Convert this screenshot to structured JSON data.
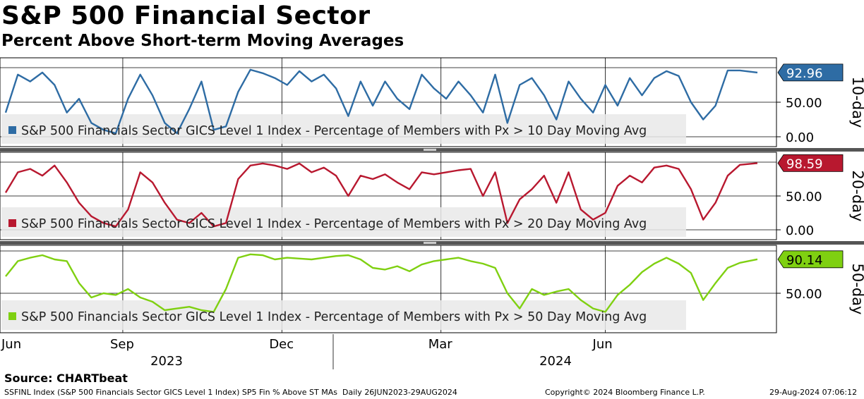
{
  "title": "S&P 500 Financial Sector",
  "subtitle": "Percent Above Short-term Moving Averages",
  "source": "Source: CHARTbeat",
  "footer": {
    "left": "SSFINL Index (S&P 500 Financials Sector GICS Level 1 Index) SP5 Fin % Above ST MAs  Daily 26JUN2023-29AUG2024",
    "middle": "Copyright© 2024 Bloomberg Finance L.P.",
    "right": "29-Aug-2024 07:06:12"
  },
  "x_axis": {
    "month_labels": [
      "Jun",
      "Sep",
      "Dec",
      "Mar",
      "Jun"
    ],
    "year_labels": [
      "2023",
      "2024"
    ]
  },
  "chart_data": [
    {
      "type": "line",
      "panel_label": "10-day",
      "legend": "S&P 500 Financials Sector GICS Level 1 Index - Percentage of Members with Px > 10 Day Moving Avg",
      "color": "#2e6ca4",
      "last_value_label": "92.96",
      "ylim": [
        -5,
        105
      ],
      "yticks": [
        "50.00",
        "0.00"
      ],
      "x": [
        "2023-06-26",
        "2023-07-03",
        "2023-07-10",
        "2023-07-17",
        "2023-07-24",
        "2023-07-31",
        "2023-08-07",
        "2023-08-14",
        "2023-08-21",
        "2023-08-28",
        "2023-09-04",
        "2023-09-11",
        "2023-09-18",
        "2023-09-25",
        "2023-10-02",
        "2023-10-09",
        "2023-10-16",
        "2023-10-23",
        "2023-10-30",
        "2023-11-06",
        "2023-11-13",
        "2023-11-20",
        "2023-11-27",
        "2023-12-04",
        "2023-12-11",
        "2023-12-18",
        "2023-12-25",
        "2024-01-01",
        "2024-01-08",
        "2024-01-15",
        "2024-01-22",
        "2024-01-29",
        "2024-02-05",
        "2024-02-12",
        "2024-02-19",
        "2024-02-26",
        "2024-03-04",
        "2024-03-11",
        "2024-03-18",
        "2024-03-25",
        "2024-04-01",
        "2024-04-08",
        "2024-04-15",
        "2024-04-22",
        "2024-04-29",
        "2024-05-06",
        "2024-05-13",
        "2024-05-20",
        "2024-05-27",
        "2024-06-03",
        "2024-06-10",
        "2024-06-17",
        "2024-06-24",
        "2024-07-01",
        "2024-07-08",
        "2024-07-15",
        "2024-07-22",
        "2024-07-29",
        "2024-08-05",
        "2024-08-12",
        "2024-08-19",
        "2024-08-29"
      ],
      "values": [
        35,
        90,
        80,
        93,
        75,
        35,
        55,
        20,
        10,
        5,
        55,
        90,
        60,
        20,
        5,
        40,
        80,
        10,
        15,
        65,
        97,
        92,
        85,
        75,
        95,
        80,
        90,
        70,
        30,
        80,
        45,
        80,
        55,
        40,
        90,
        70,
        55,
        80,
        60,
        35,
        90,
        20,
        75,
        85,
        60,
        25,
        80,
        55,
        35,
        75,
        45,
        85,
        60,
        85,
        95,
        88,
        50,
        25,
        45,
        96,
        96,
        92.96
      ]
    },
    {
      "type": "line",
      "panel_label": "20-day",
      "legend": "S&P 500 Financials Sector GICS Level 1 Index - Percentage of Members with Px > 20 Day Moving Avg",
      "color": "#b8182f",
      "last_value_label": "98.59",
      "ylim": [
        -5,
        105
      ],
      "yticks": [
        "50.00",
        "0.00"
      ],
      "x": [
        "2023-06-26",
        "2023-07-03",
        "2023-07-10",
        "2023-07-17",
        "2023-07-24",
        "2023-07-31",
        "2023-08-07",
        "2023-08-14",
        "2023-08-21",
        "2023-08-28",
        "2023-09-04",
        "2023-09-11",
        "2023-09-18",
        "2023-09-25",
        "2023-10-02",
        "2023-10-09",
        "2023-10-16",
        "2023-10-23",
        "2023-10-30",
        "2023-11-06",
        "2023-11-13",
        "2023-11-20",
        "2023-11-27",
        "2023-12-04",
        "2023-12-11",
        "2023-12-18",
        "2023-12-25",
        "2024-01-01",
        "2024-01-08",
        "2024-01-15",
        "2024-01-22",
        "2024-01-29",
        "2024-02-05",
        "2024-02-12",
        "2024-02-19",
        "2024-02-26",
        "2024-03-04",
        "2024-03-11",
        "2024-03-18",
        "2024-03-25",
        "2024-04-01",
        "2024-04-08",
        "2024-04-15",
        "2024-04-22",
        "2024-04-29",
        "2024-05-06",
        "2024-05-13",
        "2024-05-20",
        "2024-05-27",
        "2024-06-03",
        "2024-06-10",
        "2024-06-17",
        "2024-06-24",
        "2024-07-01",
        "2024-07-08",
        "2024-07-15",
        "2024-07-22",
        "2024-07-29",
        "2024-08-05",
        "2024-08-12",
        "2024-08-19",
        "2024-08-29"
      ],
      "values": [
        55,
        85,
        90,
        80,
        95,
        70,
        40,
        20,
        10,
        5,
        30,
        85,
        70,
        40,
        15,
        10,
        25,
        5,
        10,
        75,
        95,
        98,
        95,
        90,
        98,
        85,
        92,
        80,
        50,
        80,
        75,
        82,
        70,
        60,
        85,
        82,
        85,
        88,
        90,
        50,
        85,
        10,
        45,
        60,
        80,
        40,
        85,
        30,
        15,
        25,
        65,
        80,
        70,
        92,
        95,
        90,
        60,
        15,
        40,
        80,
        96,
        98.59
      ]
    },
    {
      "type": "line",
      "panel_label": "50-day",
      "legend": "S&P 500 Financials Sector GICS Level 1 Index - Percentage of Members with Px > 50 Day Moving Avg",
      "color": "#7fd011",
      "last_value_label": "90.14",
      "ylim": [
        20,
        102
      ],
      "yticks": [
        "50.00"
      ],
      "x": [
        "2023-06-26",
        "2023-07-03",
        "2023-07-10",
        "2023-07-17",
        "2023-07-24",
        "2023-07-31",
        "2023-08-07",
        "2023-08-14",
        "2023-08-21",
        "2023-08-28",
        "2023-09-04",
        "2023-09-11",
        "2023-09-18",
        "2023-09-25",
        "2023-10-02",
        "2023-10-09",
        "2023-10-16",
        "2023-10-23",
        "2023-10-30",
        "2023-11-06",
        "2023-11-13",
        "2023-11-20",
        "2023-11-27",
        "2023-12-04",
        "2023-12-11",
        "2023-12-18",
        "2023-12-25",
        "2024-01-01",
        "2024-01-08",
        "2024-01-15",
        "2024-01-22",
        "2024-01-29",
        "2024-02-05",
        "2024-02-12",
        "2024-02-19",
        "2024-02-26",
        "2024-03-04",
        "2024-03-11",
        "2024-03-18",
        "2024-03-25",
        "2024-04-01",
        "2024-04-08",
        "2024-04-15",
        "2024-04-22",
        "2024-04-29",
        "2024-05-06",
        "2024-05-13",
        "2024-05-20",
        "2024-05-27",
        "2024-06-03",
        "2024-06-10",
        "2024-06-17",
        "2024-06-24",
        "2024-07-01",
        "2024-07-08",
        "2024-07-15",
        "2024-07-22",
        "2024-07-29",
        "2024-08-05",
        "2024-08-12",
        "2024-08-19",
        "2024-08-29"
      ],
      "values": [
        70,
        88,
        92,
        95,
        90,
        88,
        62,
        45,
        50,
        48,
        55,
        45,
        40,
        30,
        32,
        34,
        30,
        28,
        55,
        92,
        96,
        95,
        90,
        92,
        91,
        90,
        92,
        94,
        95,
        90,
        80,
        78,
        82,
        76,
        84,
        88,
        90,
        92,
        88,
        85,
        80,
        50,
        32,
        55,
        48,
        52,
        55,
        42,
        32,
        28,
        48,
        60,
        75,
        85,
        92,
        85,
        74,
        42,
        62,
        80,
        86,
        90.14
      ]
    }
  ]
}
